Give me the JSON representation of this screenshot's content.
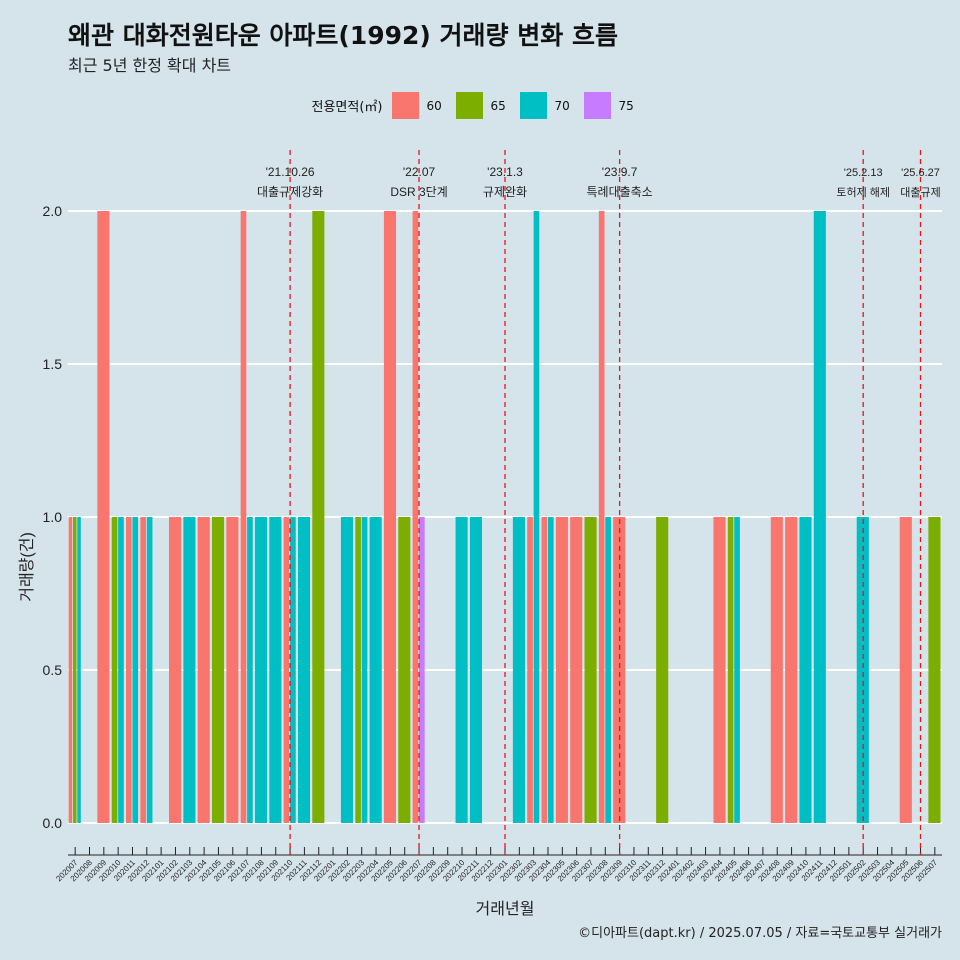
{
  "title": "왜관 대화전원타운 아파트(1992) 거래량 변화 흐름",
  "subtitle": "최근 5년 한정 확대 차트",
  "caption": "©디아파트(dapt.kr) / 2025.07.05 / 자료=국토교통부 실거래가",
  "legend": {
    "title": "전용면적(㎡)",
    "items": [
      {
        "label": "60",
        "color": "#f8766d"
      },
      {
        "label": "65",
        "color": "#7cae00"
      },
      {
        "label": "70",
        "color": "#00bfc4"
      },
      {
        "label": "75",
        "color": "#c77cff"
      }
    ]
  },
  "chart_data": {
    "type": "bar",
    "xlabel": "거래년월",
    "ylabel": "거래량(건)",
    "ylim": [
      0,
      2
    ],
    "yticks": [
      "0.0",
      "0.5",
      "1.0",
      "1.5",
      "2.0"
    ],
    "grid": true,
    "legend_position": "top",
    "categories": [
      "202007",
      "202008",
      "202009",
      "202010",
      "202011",
      "202012",
      "202101",
      "202102",
      "202103",
      "202104",
      "202105",
      "202106",
      "202107",
      "202108",
      "202109",
      "202110",
      "202111",
      "202112",
      "202201",
      "202202",
      "202203",
      "202204",
      "202205",
      "202206",
      "202207",
      "202208",
      "202209",
      "202210",
      "202211",
      "202212",
      "202301",
      "202302",
      "202303",
      "202304",
      "202305",
      "202306",
      "202307",
      "202308",
      "202309",
      "202310",
      "202311",
      "202312",
      "202401",
      "202402",
      "202403",
      "202404",
      "202405",
      "202406",
      "202407",
      "202408",
      "202409",
      "202410",
      "202411",
      "202412",
      "202501",
      "202502",
      "202503",
      "202504",
      "202505",
      "202506",
      "202507"
    ],
    "series": [
      {
        "name": "60",
        "color": "#f8766d",
        "values": [
          1,
          0,
          2,
          0,
          1,
          1,
          0,
          1,
          0,
          1,
          0,
          1,
          2,
          0,
          0,
          1,
          0,
          0,
          0,
          0,
          0,
          0,
          2,
          0,
          2,
          0,
          0,
          0,
          0,
          0,
          0,
          0,
          1,
          1,
          1,
          1,
          0,
          2,
          1,
          0,
          0,
          0,
          0,
          0,
          0,
          1,
          0,
          0,
          0,
          1,
          1,
          0,
          0,
          0,
          0,
          0,
          0,
          0,
          1,
          0,
          0
        ]
      },
      {
        "name": "65",
        "color": "#7cae00",
        "values": [
          1,
          0,
          0,
          1,
          0,
          0,
          0,
          0,
          0,
          0,
          1,
          0,
          0,
          0,
          0,
          0,
          0,
          2,
          0,
          0,
          1,
          0,
          0,
          1,
          0,
          0,
          0,
          0,
          0,
          0,
          0,
          0,
          0,
          0,
          0,
          0,
          1,
          0,
          0,
          0,
          0,
          1,
          0,
          0,
          0,
          0,
          1,
          0,
          0,
          0,
          0,
          0,
          0,
          0,
          0,
          0,
          0,
          0,
          0,
          0,
          1
        ]
      },
      {
        "name": "70",
        "color": "#00bfc4",
        "values": [
          1,
          0,
          0,
          1,
          1,
          1,
          0,
          0,
          1,
          0,
          0,
          0,
          1,
          1,
          1,
          1,
          1,
          0,
          0,
          1,
          1,
          1,
          0,
          0,
          0,
          0,
          0,
          1,
          1,
          0,
          0,
          1,
          2,
          1,
          0,
          0,
          0,
          1,
          0,
          0,
          0,
          0,
          0,
          0,
          0,
          0,
          1,
          0,
          0,
          0,
          0,
          1,
          2,
          0,
          0,
          1,
          0,
          0,
          0,
          0,
          0
        ]
      },
      {
        "name": "75",
        "color": "#c77cff",
        "values": [
          0,
          0,
          0,
          0,
          0,
          0,
          0,
          0,
          0,
          0,
          0,
          0,
          0,
          0,
          0,
          0,
          0,
          0,
          0,
          0,
          0,
          0,
          0,
          0,
          1,
          0,
          0,
          0,
          0,
          0,
          0,
          0,
          0,
          0,
          0,
          0,
          0,
          0,
          0,
          0,
          0,
          0,
          0,
          0,
          0,
          0,
          0,
          0,
          0,
          0,
          0,
          0,
          0,
          0,
          0,
          0,
          0,
          0,
          0,
          0,
          0
        ]
      }
    ],
    "annotations": [
      {
        "date": "'21.10.26",
        "label": "대출규제강화",
        "at": "202110"
      },
      {
        "date": "'22.07",
        "label": "DSR 3단계",
        "at": "202207"
      },
      {
        "date": "'23.1.3",
        "label": "규제완화",
        "at": "202301"
      },
      {
        "date": "'23.9.7",
        "label": "특례대출축소",
        "at": "202309"
      },
      {
        "date": "'25.2.13",
        "label": "토허제 해제",
        "at": "202502"
      },
      {
        "date": "'25.6.27",
        "label": "대출규제",
        "at": "202506"
      }
    ]
  }
}
